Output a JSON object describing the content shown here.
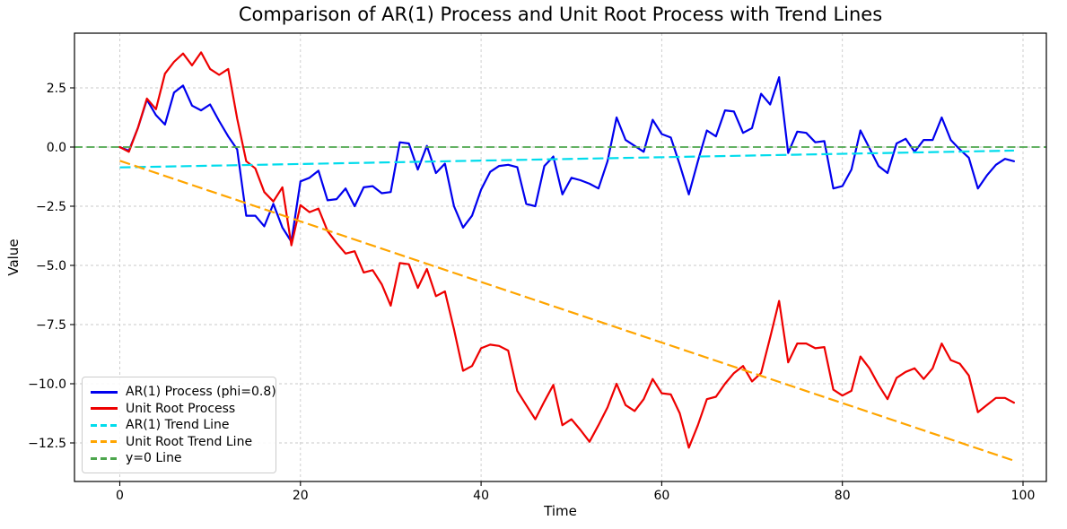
{
  "chart_data": {
    "type": "line",
    "title": "Comparison of AR(1) Process and Unit Root Process with Trend Lines",
    "xlabel": "Time",
    "ylabel": "Value",
    "x_range": [
      -5,
      102.6
    ],
    "y_range": [
      -14.2,
      4.9
    ],
    "grid": true,
    "legend_position": "lower left",
    "x_ticks": {
      "values": [
        0,
        20,
        40,
        60,
        80,
        100
      ],
      "labels": [
        "0",
        "20",
        "40",
        "60",
        "80",
        "100"
      ]
    },
    "y_ticks": {
      "values": [
        2.5,
        0.0,
        -2.5,
        -5.0,
        -7.5,
        -10.0,
        -12.5
      ],
      "labels": [
        "2.5",
        "0.0",
        "−2.5",
        "−5.0",
        "−7.5",
        "−10.0",
        "−12.5"
      ]
    },
    "series": [
      {
        "name": "AR(1) Process (phi=0.8)",
        "color": "#0000ee",
        "style": "solid",
        "x_start": 0,
        "x_step": 1,
        "values": [
          0.0,
          -0.15,
          0.8,
          2.0,
          1.35,
          0.95,
          2.3,
          2.6,
          1.75,
          1.55,
          1.8,
          1.1,
          0.45,
          -0.1,
          -2.9,
          -2.9,
          -3.35,
          -2.4,
          -3.4,
          -4.0,
          -1.45,
          -1.3,
          -1.0,
          -2.25,
          -2.2,
          -1.75,
          -2.5,
          -1.7,
          -1.65,
          -1.95,
          -1.9,
          0.2,
          0.15,
          -0.95,
          0.05,
          -1.1,
          -0.7,
          -2.5,
          -3.4,
          -2.9,
          -1.8,
          -1.05,
          -0.8,
          -0.75,
          -0.85,
          -2.4,
          -2.5,
          -0.8,
          -0.4,
          -2.0,
          -1.3,
          -1.4,
          -1.55,
          -1.75,
          -0.6,
          1.25,
          0.3,
          0.05,
          -0.2,
          1.15,
          0.55,
          0.4,
          -0.75,
          -2.0,
          -0.6,
          0.7,
          0.45,
          1.55,
          1.5,
          0.6,
          0.8,
          2.25,
          1.8,
          2.95,
          -0.25,
          0.65,
          0.6,
          0.2,
          0.25,
          -1.75,
          -1.65,
          -0.95,
          0.7,
          -0.05,
          -0.8,
          -1.1,
          0.15,
          0.35,
          -0.2,
          0.3,
          0.3,
          1.25,
          0.3,
          -0.1,
          -0.45,
          -1.75,
          -1.2,
          -0.75,
          -0.5,
          -0.6
        ]
      },
      {
        "name": "Unit Root Process",
        "color": "#ee0000",
        "style": "solid",
        "x_start": 0,
        "x_step": 1,
        "values": [
          0.0,
          -0.2,
          0.8,
          2.05,
          1.6,
          3.1,
          3.6,
          3.95,
          3.45,
          4.0,
          3.3,
          3.05,
          3.3,
          1.2,
          -0.6,
          -0.9,
          -1.9,
          -2.3,
          -1.7,
          -4.15,
          -2.45,
          -2.75,
          -2.6,
          -3.55,
          -4.05,
          -4.5,
          -4.4,
          -5.3,
          -5.2,
          -5.8,
          -6.7,
          -4.9,
          -4.95,
          -5.95,
          -5.15,
          -6.3,
          -6.1,
          -7.7,
          -9.45,
          -9.25,
          -8.5,
          -8.35,
          -8.4,
          -8.6,
          -10.3,
          -10.9,
          -11.5,
          -10.75,
          -10.05,
          -11.75,
          -11.5,
          -11.95,
          -12.45,
          -11.75,
          -11.0,
          -10.0,
          -10.9,
          -11.15,
          -10.65,
          -9.8,
          -10.4,
          -10.45,
          -11.25,
          -12.7,
          -11.75,
          -10.65,
          -10.55,
          -10.0,
          -9.55,
          -9.25,
          -9.9,
          -9.55,
          -8.05,
          -6.5,
          -9.1,
          -8.3,
          -8.3,
          -8.5,
          -8.45,
          -10.25,
          -10.5,
          -10.3,
          -8.85,
          -9.35,
          -10.05,
          -10.65,
          -9.75,
          -9.5,
          -9.35,
          -9.8,
          -9.35,
          -8.3,
          -9.0,
          -9.15,
          -9.65,
          -11.2,
          -10.9,
          -10.6,
          -10.6,
          -10.8
        ]
      }
    ],
    "trend_lines": [
      {
        "name": "AR(1) Trend Line",
        "color": "#00dcec",
        "style": "dashed",
        "x": [
          0,
          99
        ],
        "y": [
          -0.86,
          -0.15
        ]
      },
      {
        "name": "Unit Root Trend Line",
        "color": "#ffa500",
        "style": "dashed",
        "x": [
          0,
          99
        ],
        "y": [
          -0.58,
          -13.25
        ]
      },
      {
        "name": "y=0 Line",
        "color": "#4da64d",
        "style": "dashed",
        "y_value": 0,
        "span": "full-axis-width"
      }
    ],
    "legend": [
      {
        "label": "AR(1) Process (phi=0.8)",
        "color": "#0000ee",
        "dashed": false
      },
      {
        "label": "Unit Root Process",
        "color": "#ee0000",
        "dashed": false
      },
      {
        "label": "AR(1) Trend Line",
        "color": "#00dcec",
        "dashed": true
      },
      {
        "label": "Unit Root Trend Line",
        "color": "#ffa500",
        "dashed": true
      },
      {
        "label": "y=0 Line",
        "color": "#4da64d",
        "dashed": true
      }
    ]
  },
  "style_colors": {
    "grid": "#c9c9c9",
    "spine": "#000000",
    "background": "#ffffff",
    "text": "#000000"
  }
}
